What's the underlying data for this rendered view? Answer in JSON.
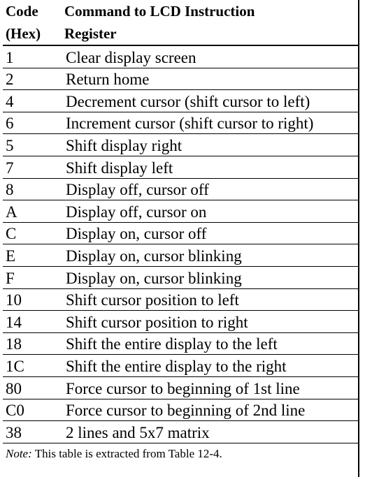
{
  "header": {
    "row1": {
      "code": "Code",
      "command": "Command to LCD Instruction"
    },
    "row2": {
      "code": "(Hex)",
      "command": "Register"
    }
  },
  "rows": [
    {
      "code": "1",
      "command": "Clear display screen"
    },
    {
      "code": "2",
      "command": "Return home"
    },
    {
      "code": "4",
      "command": "Decrement cursor (shift cursor to left)"
    },
    {
      "code": "6",
      "command": "Increment cursor (shift cursor to right)"
    },
    {
      "code": "5",
      "command": "Shift display right"
    },
    {
      "code": "7",
      "command": "Shift display left"
    },
    {
      "code": "8",
      "command": "Display off, cursor off"
    },
    {
      "code": "A",
      "command": "Display off, cursor on"
    },
    {
      "code": "C",
      "command": "Display on, cursor off"
    },
    {
      "code": "E",
      "command": "Display on, cursor blinking"
    },
    {
      "code": "F",
      "command": "Display on, cursor blinking"
    },
    {
      "code": "10",
      "command": "Shift cursor position to left"
    },
    {
      "code": "14",
      "command": "Shift cursor position to right"
    },
    {
      "code": "18",
      "command": "Shift the entire display to the left"
    },
    {
      "code": "1C",
      "command": "Shift the entire display to the right"
    },
    {
      "code": "80",
      "command": "Force cursor to beginning of 1st line"
    },
    {
      "code": "C0",
      "command": "Force cursor to beginning of 2nd line"
    },
    {
      "code": "38",
      "command": "2 lines and 5x7 matrix"
    }
  ],
  "note": {
    "label": "Note:",
    "text": "This table is extracted from Table 12-4."
  }
}
